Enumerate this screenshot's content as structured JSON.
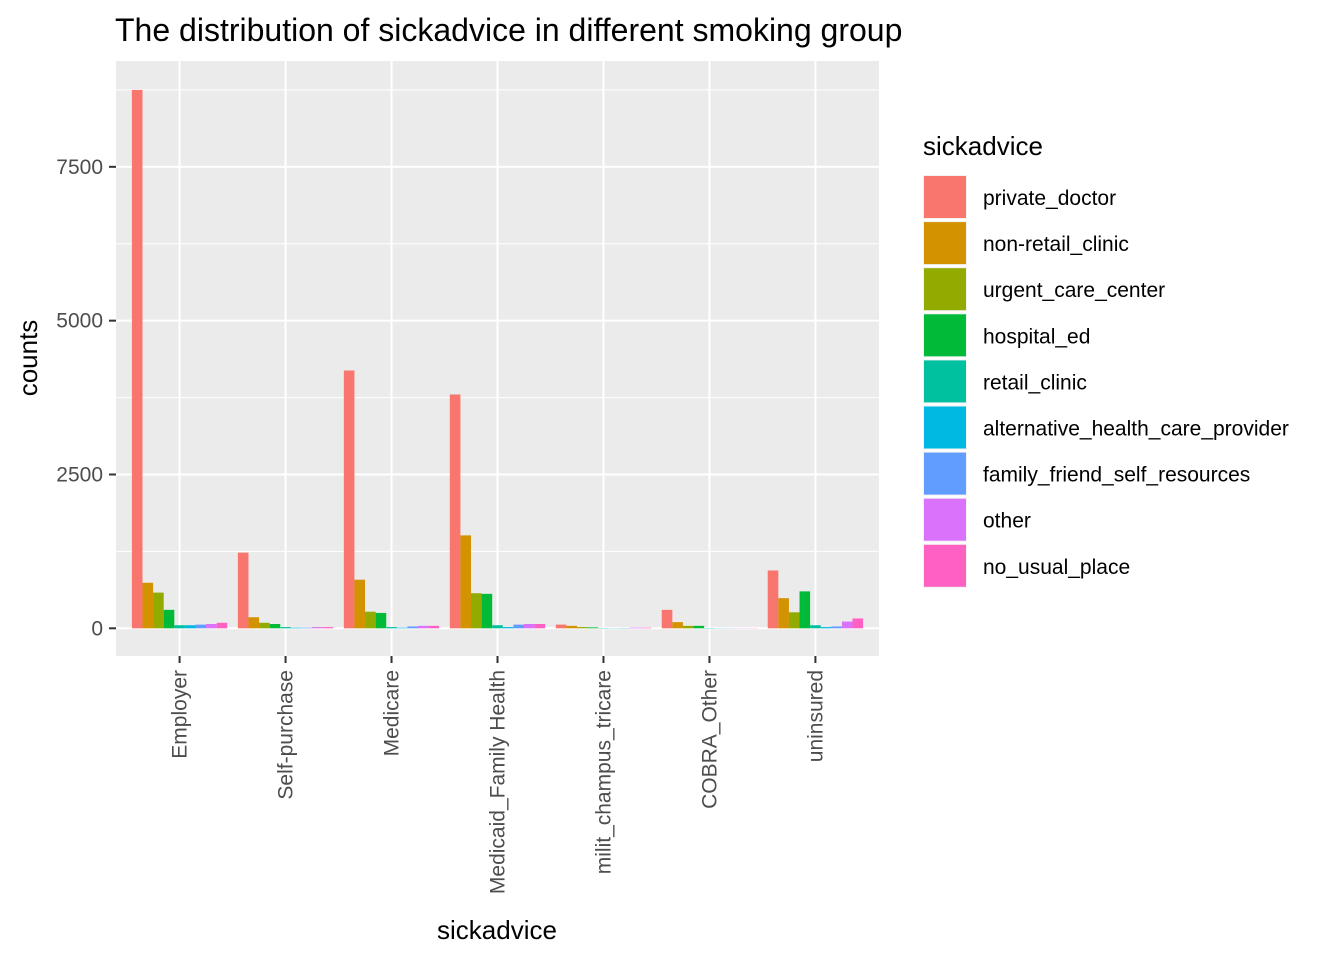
{
  "chart_data": {
    "type": "bar",
    "title": "The distribution of sickadvice in different smoking group",
    "xlabel": "sickadvice",
    "ylabel": "counts",
    "ylim": [
      -450,
      9220
    ],
    "yticks": [
      0,
      2500,
      5000,
      7500
    ],
    "grid": true,
    "legend_position": "right",
    "legend_title": "sickadvice",
    "categories": [
      "Employer",
      "Self-purchase",
      "Medicare",
      "Medicaid_Family Health",
      "milit_champus_tricare",
      "COBRA_Other",
      "uninsured"
    ],
    "series": [
      {
        "name": "private_doctor",
        "color": "#F8766D",
        "values": [
          8750,
          1230,
          4190,
          3800,
          60,
          300,
          940
        ]
      },
      {
        "name": "non-retail_clinic",
        "color": "#D39200",
        "values": [
          740,
          180,
          790,
          1510,
          40,
          100,
          490
        ]
      },
      {
        "name": "urgent_care_center",
        "color": "#93AA00",
        "values": [
          580,
          90,
          270,
          570,
          20,
          40,
          260
        ]
      },
      {
        "name": "hospital_ed",
        "color": "#00BA38",
        "values": [
          300,
          70,
          250,
          560,
          15,
          40,
          600
        ]
      },
      {
        "name": "retail_clinic",
        "color": "#00C19F",
        "values": [
          50,
          20,
          20,
          50,
          5,
          5,
          50
        ]
      },
      {
        "name": "alternative_health_care_provider",
        "color": "#00B9E3",
        "values": [
          50,
          10,
          10,
          20,
          3,
          3,
          20
        ]
      },
      {
        "name": "family_friend_self_resources",
        "color": "#619CFF",
        "values": [
          60,
          10,
          30,
          60,
          5,
          3,
          30
        ]
      },
      {
        "name": "other",
        "color": "#DB72FB",
        "values": [
          70,
          20,
          40,
          70,
          10,
          3,
          110
        ]
      },
      {
        "name": "no_usual_place",
        "color": "#FF61C3",
        "values": [
          90,
          20,
          40,
          70,
          10,
          3,
          160
        ]
      }
    ]
  }
}
